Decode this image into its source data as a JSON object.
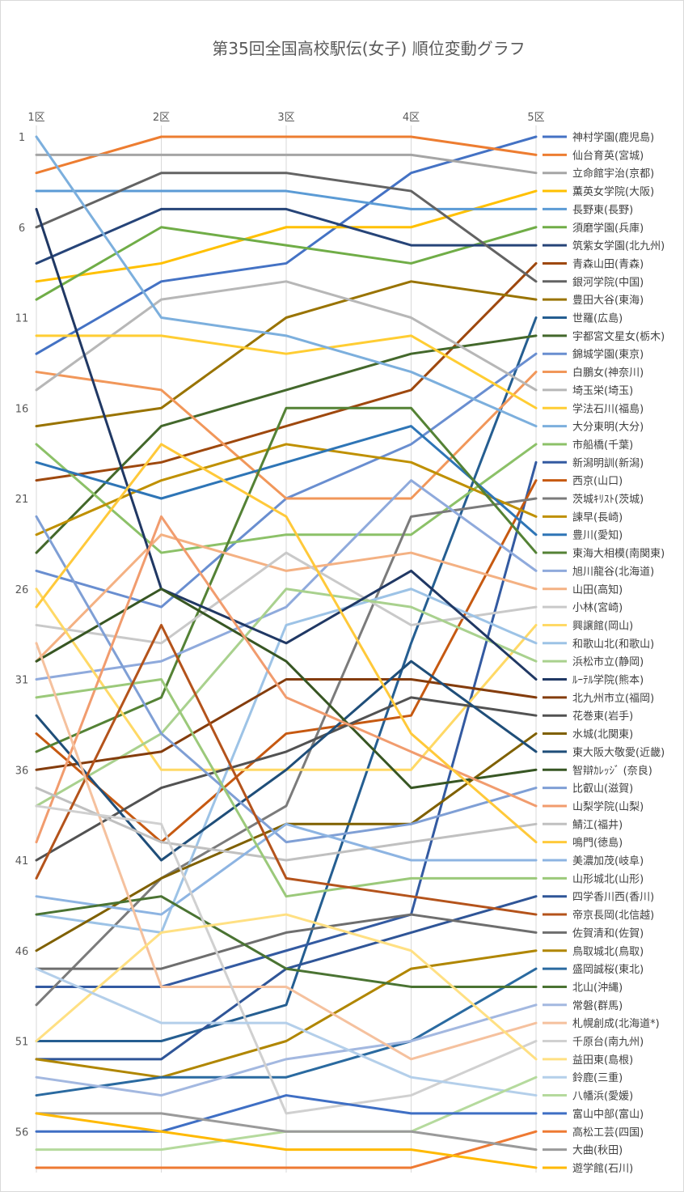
{
  "chart_data": {
    "type": "line",
    "title": "第35回全国高校駅伝(女子) 順位変動グラフ",
    "categories": [
      "1区",
      "2区",
      "3区",
      "4区",
      "5区"
    ],
    "y_ticks": [
      "1",
      "6",
      "11",
      "16",
      "21",
      "26",
      "31",
      "36",
      "41",
      "46",
      "51",
      "56"
    ],
    "ylim": [
      1,
      58
    ],
    "y_inverted": true,
    "legend_position": "right",
    "series": [
      {
        "name": "神村学園(鹿児島)",
        "color": "#4472C4",
        "values": [
          13,
          9,
          8,
          3,
          1
        ]
      },
      {
        "name": "仙台育英(宮城)",
        "color": "#ED7D31",
        "values": [
          3,
          1,
          1,
          1,
          2
        ]
      },
      {
        "name": "立命館宇治(京都)",
        "color": "#A5A5A5",
        "values": [
          2,
          2,
          2,
          2,
          3
        ]
      },
      {
        "name": "薫英女学院(大阪)",
        "color": "#FFC000",
        "values": [
          9,
          8,
          6,
          6,
          4
        ]
      },
      {
        "name": "長野東(長野)",
        "color": "#5B9BD5",
        "values": [
          4,
          4,
          4,
          5,
          5
        ]
      },
      {
        "name": "須磨学園(兵庫)",
        "color": "#70AD47",
        "values": [
          10,
          6,
          7,
          8,
          6
        ]
      },
      {
        "name": "筑紫女学園(北九州)",
        "color": "#264478",
        "values": [
          8,
          5,
          5,
          7,
          7
        ]
      },
      {
        "name": "青森山田(青森)",
        "color": "#9E480E",
        "values": [
          20,
          19,
          17,
          15,
          8
        ]
      },
      {
        "name": "銀河学院(中国)",
        "color": "#636363",
        "values": [
          6,
          3,
          3,
          4,
          9
        ]
      },
      {
        "name": "豊田大谷(東海)",
        "color": "#997300",
        "values": [
          17,
          16,
          11,
          9,
          10
        ]
      },
      {
        "name": "世羅(広島)",
        "color": "#255E91",
        "values": [
          51,
          51,
          49,
          29,
          11
        ]
      },
      {
        "name": "宇都宮文星女(栃木)",
        "color": "#43682B",
        "values": [
          24,
          17,
          15,
          13,
          12
        ]
      },
      {
        "name": "錦城学園(東京)",
        "color": "#698ED0",
        "values": [
          25,
          27,
          21,
          18,
          13
        ]
      },
      {
        "name": "白鵬女(神奈川)",
        "color": "#F1975A",
        "values": [
          14,
          15,
          21,
          21,
          14
        ]
      },
      {
        "name": "埼玉栄(埼玉)",
        "color": "#B7B7B7",
        "values": [
          15,
          10,
          9,
          11,
          15
        ]
      },
      {
        "name": "学法石川(福島)",
        "color": "#FFCD33",
        "values": [
          12,
          12,
          13,
          12,
          16
        ]
      },
      {
        "name": "大分東明(大分)",
        "color": "#7CAFDD",
        "values": [
          1,
          11,
          12,
          14,
          17
        ]
      },
      {
        "name": "市船橋(千葉)",
        "color": "#8CC168",
        "values": [
          18,
          24,
          23,
          23,
          18
        ]
      },
      {
        "name": "新潟明訓(新潟)",
        "color": "#335AA1",
        "values": [
          48,
          48,
          46,
          44,
          19
        ]
      },
      {
        "name": "西京(山口)",
        "color": "#C65911",
        "values": [
          34,
          40,
          34,
          33,
          20
        ]
      },
      {
        "name": "茨城ｷﾘｽﾄ(茨城)",
        "color": "#7B7B7B",
        "values": [
          49,
          42,
          38,
          22,
          21
        ]
      },
      {
        "name": "諫早(長崎)",
        "color": "#BF9000",
        "values": [
          23,
          20,
          18,
          19,
          22
        ]
      },
      {
        "name": "豊川(愛知)",
        "color": "#2E75B6",
        "values": [
          19,
          21,
          19,
          17,
          23
        ]
      },
      {
        "name": "東海大相模(南関東)",
        "color": "#548235",
        "values": [
          35,
          32,
          16,
          16,
          24
        ]
      },
      {
        "name": "旭川龍谷(北海道)",
        "color": "#8FAADC",
        "values": [
          31,
          30,
          27,
          20,
          25
        ]
      },
      {
        "name": "山田(高知)",
        "color": "#F4B183",
        "values": [
          30,
          23,
          25,
          24,
          26
        ]
      },
      {
        "name": "小林(宮崎)",
        "color": "#C9C9C9",
        "values": [
          28,
          29,
          24,
          28,
          27
        ]
      },
      {
        "name": "興譲館(岡山)",
        "color": "#FFD966",
        "values": [
          26,
          36,
          36,
          36,
          28
        ]
      },
      {
        "name": "和歌山北(和歌山)",
        "color": "#9DC3E6",
        "values": [
          44,
          45,
          28,
          26,
          29
        ]
      },
      {
        "name": "浜松市立(静岡)",
        "color": "#A9D18E",
        "values": [
          38,
          34,
          26,
          27,
          30
        ]
      },
      {
        "name": "ﾙｰﾃﾙ学院(熊本)",
        "color": "#203864",
        "values": [
          5,
          26,
          29,
          25,
          31
        ]
      },
      {
        "name": "北九州市立(福岡)",
        "color": "#843C0C",
        "values": [
          36,
          35,
          31,
          31,
          32
        ]
      },
      {
        "name": "花巻東(岩手)",
        "color": "#525252",
        "values": [
          41,
          37,
          35,
          32,
          33
        ]
      },
      {
        "name": "水城(北関東)",
        "color": "#7F6000",
        "values": [
          46,
          42,
          39,
          39,
          34
        ]
      },
      {
        "name": "東大阪大敬愛(近畿)",
        "color": "#1F4E79",
        "values": [
          33,
          41,
          36,
          30,
          35
        ]
      },
      {
        "name": "智辯ｶﾚｯｼﾞ (奈良)",
        "color": "#375623",
        "values": [
          30,
          26,
          30,
          37,
          36
        ]
      },
      {
        "name": "比叡山(滋賀)",
        "color": "#7F9FD5",
        "values": [
          22,
          34,
          40,
          39,
          37
        ]
      },
      {
        "name": "山梨学院(山梨)",
        "color": "#F19C6E",
        "values": [
          40,
          22,
          32,
          35,
          38
        ]
      },
      {
        "name": "鯖江(福井)",
        "color": "#C0C0C0",
        "values": [
          37,
          40,
          41,
          40,
          39
        ]
      },
      {
        "name": "鳴門(徳島)",
        "color": "#FFC93A",
        "values": [
          27,
          18,
          22,
          34,
          40
        ]
      },
      {
        "name": "美濃加茂(岐阜)",
        "color": "#8DB4E2",
        "values": [
          43,
          44,
          39,
          41,
          41
        ]
      },
      {
        "name": "山形城北(山形)",
        "color": "#9BC97A",
        "values": [
          32,
          31,
          43,
          42,
          42
        ]
      },
      {
        "name": "四学香川西(香川)",
        "color": "#2F5597",
        "values": [
          52,
          52,
          47,
          45,
          43
        ]
      },
      {
        "name": "帝京長岡(北信越)",
        "color": "#B4531B",
        "values": [
          42,
          28,
          42,
          43,
          44
        ]
      },
      {
        "name": "佐賀清和(佐賀)",
        "color": "#6E6E6E",
        "values": [
          47,
          47,
          45,
          44,
          45
        ]
      },
      {
        "name": "鳥取城北(鳥取)",
        "color": "#B08600",
        "values": [
          52,
          53,
          51,
          47,
          46
        ]
      },
      {
        "name": "盛岡誠桜(東北)",
        "color": "#2A6AA0",
        "values": [
          54,
          53,
          53,
          51,
          47
        ]
      },
      {
        "name": "北山(沖縄)",
        "color": "#4A7332",
        "values": [
          44,
          43,
          47,
          48,
          48
        ]
      },
      {
        "name": "常磐(群馬)",
        "color": "#A3B8E0",
        "values": [
          53,
          54,
          52,
          51,
          49
        ]
      },
      {
        "name": "札幌創成(北海道*)",
        "color": "#F5C19E",
        "values": [
          29,
          48,
          48,
          52,
          50
        ]
      },
      {
        "name": "千原台(南九州)",
        "color": "#D0D0D0",
        "values": [
          38,
          39,
          55,
          54,
          51
        ]
      },
      {
        "name": "益田東(島根)",
        "color": "#FFE083",
        "values": [
          51,
          45,
          44,
          46,
          52
        ]
      },
      {
        "name": "鈴鹿(三重)",
        "color": "#B4CFEA",
        "values": [
          47,
          50,
          50,
          53,
          54
        ]
      },
      {
        "name": "八幡浜(愛媛)",
        "color": "#B5DA9D",
        "values": [
          57,
          57,
          56,
          56,
          53
        ]
      },
      {
        "name": "富山中部(富山)",
        "color": "#3F6FC4",
        "values": [
          56,
          56,
          54,
          55,
          55
        ]
      },
      {
        "name": "高松工芸(四国)",
        "color": "#EE7A33",
        "values": [
          58,
          58,
          58,
          58,
          56
        ]
      },
      {
        "name": "大曲(秋田)",
        "color": "#9A9A9A",
        "values": [
          55,
          55,
          56,
          56,
          57
        ]
      },
      {
        "name": "遊学館(石川)",
        "color": "#FFB900",
        "values": [
          55,
          56,
          57,
          57,
          58
        ]
      }
    ]
  }
}
